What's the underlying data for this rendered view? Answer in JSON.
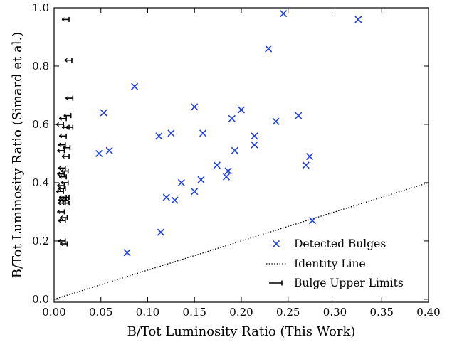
{
  "chart_data": {
    "type": "scatter",
    "xlabel": "B/Tot Luminosity Ratio (This Work)",
    "ylabel": "B/Tot Luminosity Ratio (Simard et al.)",
    "xlim": [
      0.0,
      0.4
    ],
    "ylim": [
      -0.01,
      1.0
    ],
    "xticks": [
      "0.00",
      "0.05",
      "0.10",
      "0.15",
      "0.20",
      "0.25",
      "0.30",
      "0.35",
      "0.40"
    ],
    "yticks": [
      "0.0",
      "0.2",
      "0.4",
      "0.6",
      "0.8",
      "1.0"
    ],
    "legend_position": "bottom-right",
    "legend": [
      "Detected Bulges",
      "Identity Line",
      "Bulge Upper Limits"
    ],
    "detected_color": "#1f3fe0",
    "detected": [
      {
        "x": 0.245,
        "y": 0.98
      },
      {
        "x": 0.325,
        "y": 0.96
      },
      {
        "x": 0.229,
        "y": 0.86
      },
      {
        "x": 0.086,
        "y": 0.73
      },
      {
        "x": 0.053,
        "y": 0.64
      },
      {
        "x": 0.15,
        "y": 0.66
      },
      {
        "x": 0.2,
        "y": 0.65
      },
      {
        "x": 0.261,
        "y": 0.63
      },
      {
        "x": 0.19,
        "y": 0.62
      },
      {
        "x": 0.237,
        "y": 0.61
      },
      {
        "x": 0.112,
        "y": 0.56
      },
      {
        "x": 0.125,
        "y": 0.57
      },
      {
        "x": 0.159,
        "y": 0.57
      },
      {
        "x": 0.214,
        "y": 0.56
      },
      {
        "x": 0.214,
        "y": 0.53
      },
      {
        "x": 0.048,
        "y": 0.5
      },
      {
        "x": 0.059,
        "y": 0.51
      },
      {
        "x": 0.193,
        "y": 0.51
      },
      {
        "x": 0.273,
        "y": 0.49
      },
      {
        "x": 0.269,
        "y": 0.46
      },
      {
        "x": 0.174,
        "y": 0.46
      },
      {
        "x": 0.186,
        "y": 0.44
      },
      {
        "x": 0.184,
        "y": 0.42
      },
      {
        "x": 0.157,
        "y": 0.41
      },
      {
        "x": 0.136,
        "y": 0.4
      },
      {
        "x": 0.15,
        "y": 0.37
      },
      {
        "x": 0.12,
        "y": 0.35
      },
      {
        "x": 0.129,
        "y": 0.34
      },
      {
        "x": 0.276,
        "y": 0.27
      },
      {
        "x": 0.114,
        "y": 0.23
      },
      {
        "x": 0.078,
        "y": 0.16
      }
    ],
    "identity_line": {
      "x": [
        0.0,
        0.4
      ],
      "y": [
        0.0,
        0.4
      ]
    },
    "upper_limits": [
      {
        "x": 0.016,
        "y": 0.96
      },
      {
        "x": 0.019,
        "y": 0.82
      },
      {
        "x": 0.02,
        "y": 0.69
      },
      {
        "x": 0.018,
        "y": 0.63
      },
      {
        "x": 0.013,
        "y": 0.62
      },
      {
        "x": 0.02,
        "y": 0.59
      },
      {
        "x": 0.016,
        "y": 0.59
      },
      {
        "x": 0.01,
        "y": 0.6
      },
      {
        "x": 0.013,
        "y": 0.56
      },
      {
        "x": 0.012,
        "y": 0.53
      },
      {
        "x": 0.017,
        "y": 0.52
      },
      {
        "x": 0.011,
        "y": 0.51
      },
      {
        "x": 0.016,
        "y": 0.49
      },
      {
        "x": 0.012,
        "y": 0.45
      },
      {
        "x": 0.015,
        "y": 0.44
      },
      {
        "x": 0.011,
        "y": 0.43
      },
      {
        "x": 0.013,
        "y": 0.42
      },
      {
        "x": 0.015,
        "y": 0.4
      },
      {
        "x": 0.011,
        "y": 0.39
      },
      {
        "x": 0.012,
        "y": 0.38
      },
      {
        "x": 0.01,
        "y": 0.37
      },
      {
        "x": 0.016,
        "y": 0.35
      },
      {
        "x": 0.013,
        "y": 0.35
      },
      {
        "x": 0.012,
        "y": 0.34
      },
      {
        "x": 0.015,
        "y": 0.34
      },
      {
        "x": 0.012,
        "y": 0.33
      },
      {
        "x": 0.016,
        "y": 0.33
      },
      {
        "x": 0.011,
        "y": 0.3
      },
      {
        "x": 0.014,
        "y": 0.28
      },
      {
        "x": 0.012,
        "y": 0.27
      },
      {
        "x": 0.012,
        "y": 0.2
      },
      {
        "x": 0.014,
        "y": 0.19
      }
    ]
  }
}
